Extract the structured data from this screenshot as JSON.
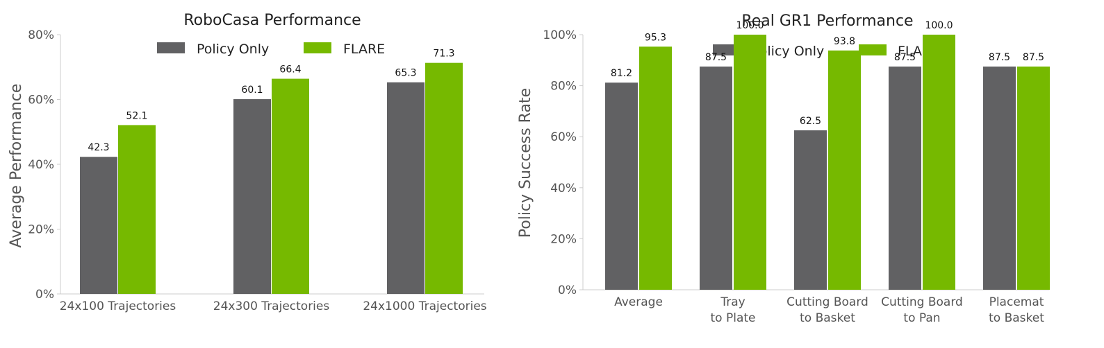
{
  "colors": {
    "policy_only": "#616163",
    "flare": "#76b900"
  },
  "chart_data": [
    {
      "type": "bar",
      "title": "RoboCasa Performance",
      "xlabel": "",
      "ylabel": "Average Performance",
      "ylim": [
        0,
        80
      ],
      "yticks": [
        "0%",
        "20%",
        "40%",
        "60%",
        "80%"
      ],
      "yticks_values": [
        0,
        20,
        40,
        60,
        80
      ],
      "categories": [
        [
          "24x100 Trajectories"
        ],
        [
          "24x300 Trajectories"
        ],
        [
          "24x1000 Trajectories"
        ]
      ],
      "legend_position": "top-center",
      "series": [
        {
          "name": "Policy Only",
          "values": [
            42.3,
            60.1,
            65.3
          ],
          "labels": [
            "42.3",
            "60.1",
            "65.3"
          ]
        },
        {
          "name": "FLARE",
          "values": [
            52.1,
            66.4,
            71.3
          ],
          "labels": [
            "52.1",
            "66.4",
            "71.3"
          ]
        }
      ]
    },
    {
      "type": "bar",
      "title": "Real GR1 Performance",
      "xlabel": "",
      "ylabel": "Policy Success Rate",
      "ylim": [
        0,
        100
      ],
      "yticks": [
        "0%",
        "20%",
        "40%",
        "60%",
        "80%",
        "100%"
      ],
      "yticks_values": [
        0,
        20,
        40,
        60,
        80,
        100
      ],
      "categories": [
        [
          "Average"
        ],
        [
          "Tray",
          "to Plate"
        ],
        [
          "Cutting Board",
          "to Basket"
        ],
        [
          "Cutting Board",
          "to Pan"
        ],
        [
          "Placemat",
          "to Basket"
        ]
      ],
      "legend_position": "top-center",
      "series": [
        {
          "name": "Policy Only",
          "values": [
            81.2,
            87.5,
            62.5,
            87.5,
            87.5
          ],
          "labels": [
            "81.2",
            "87.5",
            "62.5",
            "87.5",
            "87.5"
          ]
        },
        {
          "name": "FLARE",
          "values": [
            95.3,
            100.0,
            93.8,
            100.0,
            87.5
          ],
          "labels": [
            "95.3",
            "100.0",
            "93.8",
            "100.0",
            "87.5"
          ]
        }
      ]
    }
  ]
}
